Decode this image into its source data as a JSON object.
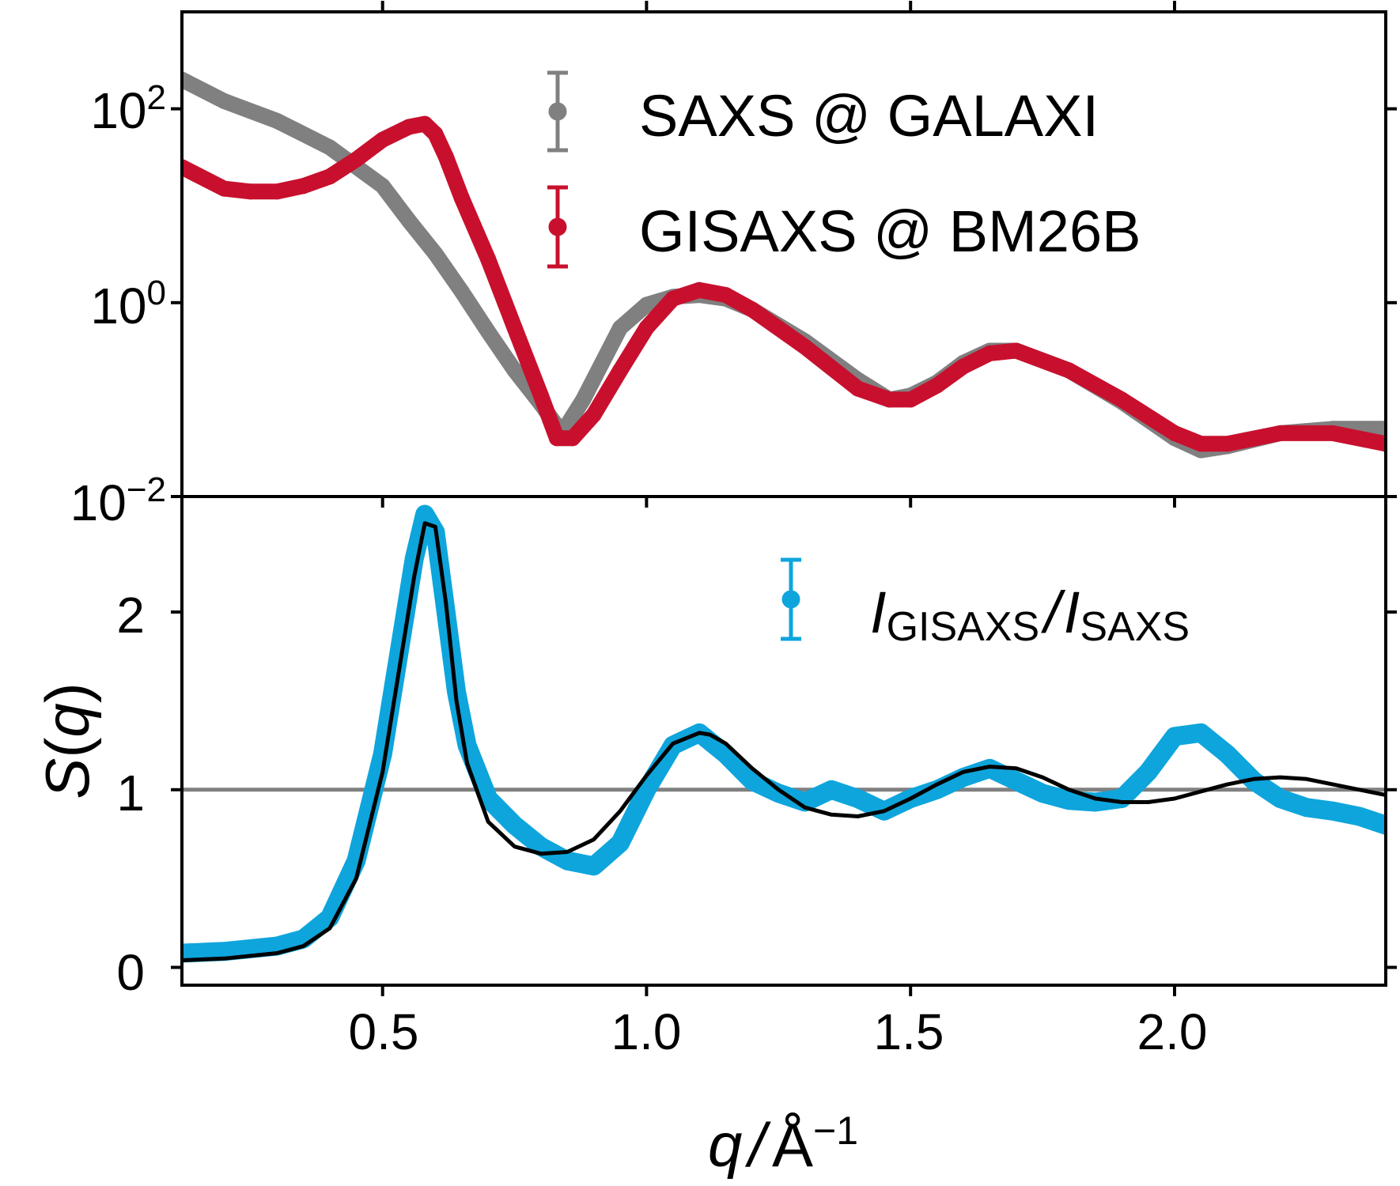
{
  "chart_data": [
    {
      "panel": "top",
      "type": "scatter",
      "yscale": "log",
      "xlim": [
        0.12,
        2.4
      ],
      "ylim": [
        0.01,
        1000
      ],
      "yticks": [
        {
          "value": 100,
          "base": "10",
          "exp": "2"
        },
        {
          "value": 1,
          "base": "10",
          "exp": "0"
        },
        {
          "value": 0.01,
          "base": "10",
          "exp": "−2"
        }
      ],
      "legend_position": "upper-right",
      "series": [
        {
          "name": "SAXS @ GALAXI",
          "color": "#808080",
          "x": [
            0.12,
            0.2,
            0.3,
            0.4,
            0.5,
            0.55,
            0.6,
            0.65,
            0.7,
            0.75,
            0.8,
            0.84,
            0.88,
            0.95,
            1.0,
            1.05,
            1.1,
            1.15,
            1.2,
            1.3,
            1.4,
            1.46,
            1.5,
            1.55,
            1.6,
            1.65,
            1.7,
            1.8,
            1.9,
            2.0,
            2.05,
            2.1,
            2.2,
            2.3,
            2.4
          ],
          "y": [
            200,
            120,
            75,
            40,
            16,
            7,
            3.2,
            1.3,
            0.5,
            0.2,
            0.09,
            0.045,
            0.1,
            0.55,
            0.95,
            1.15,
            1.2,
            1.1,
            0.85,
            0.4,
            0.16,
            0.1,
            0.11,
            0.15,
            0.24,
            0.32,
            0.32,
            0.2,
            0.095,
            0.04,
            0.03,
            0.033,
            0.045,
            0.05,
            0.05
          ]
        },
        {
          "name": "GISAXS @ BM26B",
          "color": "#c8102e",
          "x": [
            0.12,
            0.2,
            0.25,
            0.3,
            0.35,
            0.4,
            0.45,
            0.5,
            0.55,
            0.58,
            0.6,
            0.62,
            0.65,
            0.7,
            0.75,
            0.8,
            0.83,
            0.86,
            0.9,
            0.95,
            1.0,
            1.05,
            1.1,
            1.15,
            1.2,
            1.3,
            1.4,
            1.46,
            1.5,
            1.55,
            1.6,
            1.65,
            1.7,
            1.8,
            1.9,
            2.0,
            2.05,
            2.1,
            2.2,
            2.3,
            2.4
          ],
          "y": [
            25,
            15,
            14,
            14,
            16,
            20,
            30,
            48,
            65,
            70,
            55,
            32,
            12,
            2.8,
            0.55,
            0.11,
            0.04,
            0.04,
            0.07,
            0.2,
            0.55,
            1.1,
            1.35,
            1.2,
            0.85,
            0.35,
            0.13,
            0.1,
            0.1,
            0.14,
            0.22,
            0.3,
            0.32,
            0.2,
            0.1,
            0.045,
            0.035,
            0.035,
            0.045,
            0.045,
            0.035
          ]
        }
      ]
    },
    {
      "panel": "bottom",
      "type": "scatter",
      "xlim": [
        0.12,
        2.4
      ],
      "ylim": [
        -0.1,
        2.65
      ],
      "yticks": [
        "0",
        "1",
        "2"
      ],
      "xticks": [
        "0.5",
        "1.0",
        "1.5",
        "2.0"
      ],
      "ylabel": "S(q)",
      "xlabel": "q / Å⁻¹",
      "legend_position": "upper-right",
      "reference_line": {
        "y": 1,
        "color": "#808080"
      },
      "series": [
        {
          "name": "I_GISAXS / I_SAXS",
          "color": "#0ea5dc",
          "x": [
            0.12,
            0.2,
            0.3,
            0.35,
            0.4,
            0.45,
            0.5,
            0.53,
            0.56,
            0.58,
            0.6,
            0.62,
            0.64,
            0.66,
            0.7,
            0.75,
            0.8,
            0.85,
            0.9,
            0.95,
            1.0,
            1.05,
            1.1,
            1.15,
            1.2,
            1.25,
            1.3,
            1.35,
            1.4,
            1.45,
            1.5,
            1.55,
            1.6,
            1.65,
            1.7,
            1.75,
            1.8,
            1.85,
            1.9,
            1.95,
            2.0,
            2.05,
            2.1,
            2.15,
            2.2,
            2.25,
            2.3,
            2.35,
            2.4
          ],
          "y": [
            0.08,
            0.09,
            0.12,
            0.16,
            0.28,
            0.6,
            1.2,
            1.75,
            2.3,
            2.55,
            2.45,
            2.0,
            1.55,
            1.25,
            0.95,
            0.8,
            0.68,
            0.6,
            0.57,
            0.7,
            1.0,
            1.25,
            1.32,
            1.2,
            1.05,
            0.98,
            0.93,
            1.0,
            0.95,
            0.88,
            0.95,
            1.0,
            1.07,
            1.12,
            1.05,
            0.98,
            0.94,
            0.93,
            0.95,
            1.1,
            1.3,
            1.32,
            1.2,
            1.05,
            0.95,
            0.9,
            0.88,
            0.85,
            0.8
          ]
        },
        {
          "name": "fit",
          "color": "#000000",
          "x": [
            0.12,
            0.2,
            0.3,
            0.35,
            0.4,
            0.45,
            0.5,
            0.53,
            0.56,
            0.58,
            0.6,
            0.62,
            0.64,
            0.66,
            0.7,
            0.75,
            0.8,
            0.85,
            0.9,
            0.95,
            1.0,
            1.05,
            1.1,
            1.12,
            1.15,
            1.2,
            1.25,
            1.3,
            1.35,
            1.4,
            1.45,
            1.5,
            1.55,
            1.6,
            1.65,
            1.7,
            1.75,
            1.8,
            1.85,
            1.9,
            1.95,
            2.0,
            2.05,
            2.1,
            2.15,
            2.2,
            2.25,
            2.3,
            2.35,
            2.4
          ],
          "y": [
            0.04,
            0.05,
            0.08,
            0.12,
            0.22,
            0.5,
            1.1,
            1.65,
            2.2,
            2.5,
            2.48,
            2.05,
            1.5,
            1.15,
            0.82,
            0.68,
            0.64,
            0.65,
            0.72,
            0.88,
            1.08,
            1.26,
            1.32,
            1.31,
            1.26,
            1.12,
            1.0,
            0.9,
            0.86,
            0.85,
            0.88,
            0.95,
            1.03,
            1.1,
            1.13,
            1.12,
            1.07,
            1.0,
            0.95,
            0.93,
            0.93,
            0.95,
            0.99,
            1.03,
            1.06,
            1.07,
            1.06,
            1.03,
            1.0,
            0.97
          ]
        }
      ]
    }
  ],
  "legend": {
    "top": [
      "SAXS @ GALAXI",
      "GISAXS @ BM26B"
    ],
    "bottom": {
      "main1": "I",
      "sub1": "GISAXS",
      "slash": "/",
      "main2": "I",
      "sub2": "SAXS"
    }
  },
  "axis_labels": {
    "y_main": "S",
    "y_open": "(",
    "y_var": "q",
    "y_close": ")",
    "x_var": "q",
    "x_sep": "/",
    "x_unit": "Å",
    "x_exp": "−1"
  }
}
